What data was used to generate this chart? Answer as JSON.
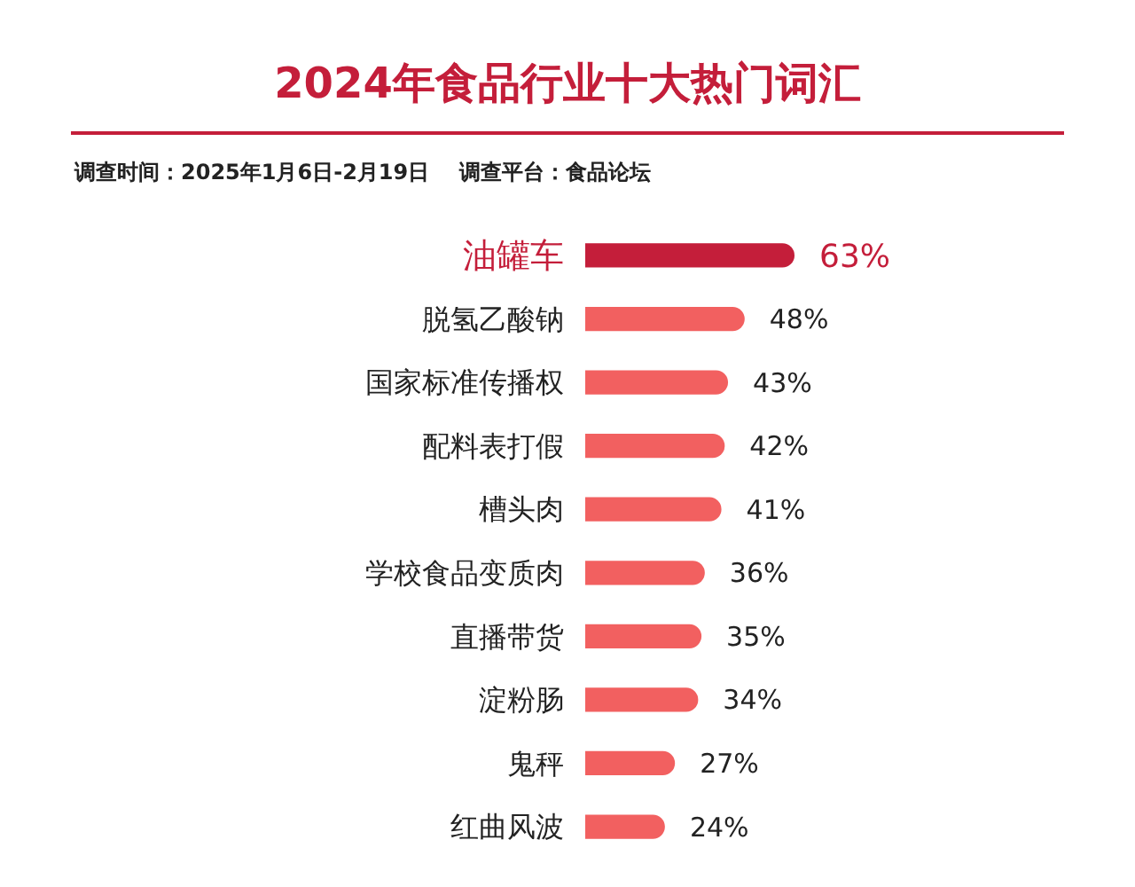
{
  "chart_data": {
    "type": "bar",
    "orientation": "horizontal",
    "title": "2024年食品行业十大热门词汇",
    "subtitle": "调查时间：2025年1月6日-2月19日    调查平台：食品论坛",
    "categories": [
      "油罐车",
      "脱氢乙酸钠",
      "国家标准传播权",
      "配料表打假",
      "槽头肉",
      "学校食品变质肉",
      "直播带货",
      "淀粉肠",
      "鬼秤",
      "红曲风波"
    ],
    "values": [
      63,
      48,
      43,
      42,
      41,
      36,
      35,
      34,
      27,
      24
    ],
    "value_labels": [
      "63%",
      "48%",
      "43%",
      "42%",
      "41%",
      "36%",
      "35%",
      "34%",
      "27%",
      "24%"
    ],
    "colors": [
      "#c41e3a",
      "#f26060",
      "#f26060",
      "#f26060",
      "#f26060",
      "#f26060",
      "#f26060",
      "#f26060",
      "#f26060",
      "#f26060"
    ]
  }
}
